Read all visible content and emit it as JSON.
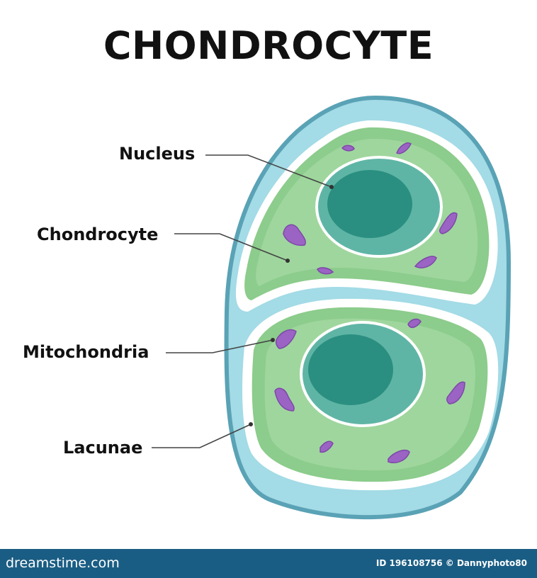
{
  "title": "CHONDROCYTE",
  "labels": {
    "nucleus": "Nucleus",
    "chondrocyte": "Chondrocyte",
    "mitochondria": "Mitochondria",
    "lacunae": "Lacunae"
  },
  "footer": {
    "logo": "dreamstime.com",
    "id_text": "ID 196108756 © Dannyphoto80"
  },
  "colors": {
    "outer_capsule": "#a3dbe6",
    "outer_stroke": "#5aa2b5",
    "membrane": "#ffffff",
    "cytoplasm": "#8ccc8c",
    "cytoplasm_inner": "#9fd69d",
    "nucleus_outer": "#5fb5a5",
    "nucleus_inner": "#2a8f80",
    "mitochondria": "#9b64c4",
    "footer": "#1a5d84"
  }
}
